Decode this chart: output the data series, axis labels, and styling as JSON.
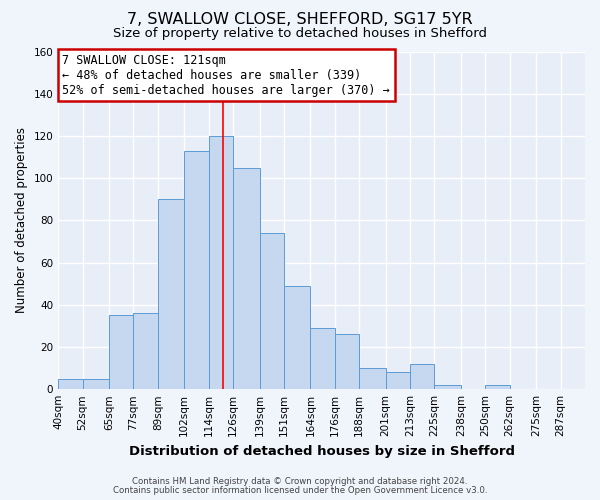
{
  "title": "7, SWALLOW CLOSE, SHEFFORD, SG17 5YR",
  "subtitle": "Size of property relative to detached houses in Shefford",
  "xlabel": "Distribution of detached houses by size in Shefford",
  "ylabel": "Number of detached properties",
  "bar_labels": [
    "40sqm",
    "52sqm",
    "65sqm",
    "77sqm",
    "89sqm",
    "102sqm",
    "114sqm",
    "126sqm",
    "139sqm",
    "151sqm",
    "164sqm",
    "176sqm",
    "188sqm",
    "201sqm",
    "213sqm",
    "225sqm",
    "238sqm",
    "250sqm",
    "262sqm",
    "275sqm",
    "287sqm"
  ],
  "bar_values": [
    5,
    5,
    35,
    36,
    90,
    113,
    120,
    105,
    74,
    49,
    29,
    26,
    10,
    8,
    12,
    2,
    0,
    2,
    0,
    0,
    0
  ],
  "bar_color": "#c5d8f0",
  "bar_edge_color": "#5b9bd5",
  "property_line_x": 121,
  "bin_edges": [
    40,
    52,
    65,
    77,
    89,
    102,
    114,
    126,
    139,
    151,
    164,
    176,
    188,
    201,
    213,
    225,
    238,
    250,
    262,
    275,
    287,
    299
  ],
  "annotation_title": "7 SWALLOW CLOSE: 121sqm",
  "annotation_line1": "← 48% of detached houses are smaller (339)",
  "annotation_line2": "52% of semi-detached houses are larger (370) →",
  "annotation_box_color": "#ffffff",
  "annotation_box_edge": "#cc0000",
  "ylim": [
    0,
    160
  ],
  "yticks": [
    0,
    20,
    40,
    60,
    80,
    100,
    120,
    140,
    160
  ],
  "footer1": "Contains HM Land Registry data © Crown copyright and database right 2024.",
  "footer2": "Contains public sector information licensed under the Open Government Licence v3.0.",
  "bg_color": "#f0f4fb",
  "plot_bg_color": "#e8eef8",
  "grid_color": "#ffffff",
  "title_fontsize": 11.5,
  "subtitle_fontsize": 9.5,
  "tick_fontsize": 7.5,
  "ylabel_fontsize": 8.5,
  "xlabel_fontsize": 9.5,
  "ann_fontsize": 8.5
}
